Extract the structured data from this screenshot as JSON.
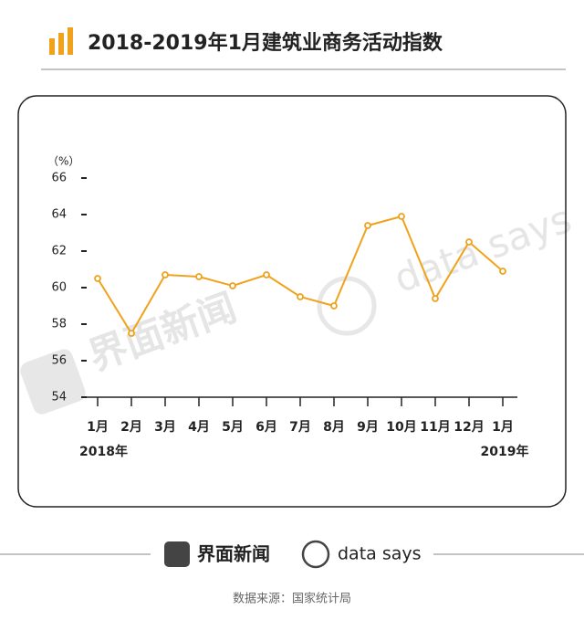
{
  "chart_data": {
    "type": "line",
    "title": "2018-2019年1月建筑业商务活动指数",
    "y_label": "（%）",
    "categories": [
      "1月",
      "2月",
      "3月",
      "4月",
      "5月",
      "6月",
      "7月",
      "8月",
      "9月",
      "10月",
      "11月",
      "12月",
      "1月"
    ],
    "year_labels": [
      "2018年",
      "2019年"
    ],
    "values": [
      60.5,
      57.5,
      60.7,
      60.6,
      60.1,
      60.7,
      59.5,
      59.0,
      63.4,
      63.9,
      59.4,
      62.5,
      60.9
    ],
    "color": "#f0a21c",
    "ylim": [
      54,
      66
    ],
    "yticks": [
      54,
      56,
      58,
      60,
      62,
      64,
      66
    ]
  },
  "brand": [
    "界面新闻",
    "data says"
  ],
  "source": "数据来源：国家统计局"
}
